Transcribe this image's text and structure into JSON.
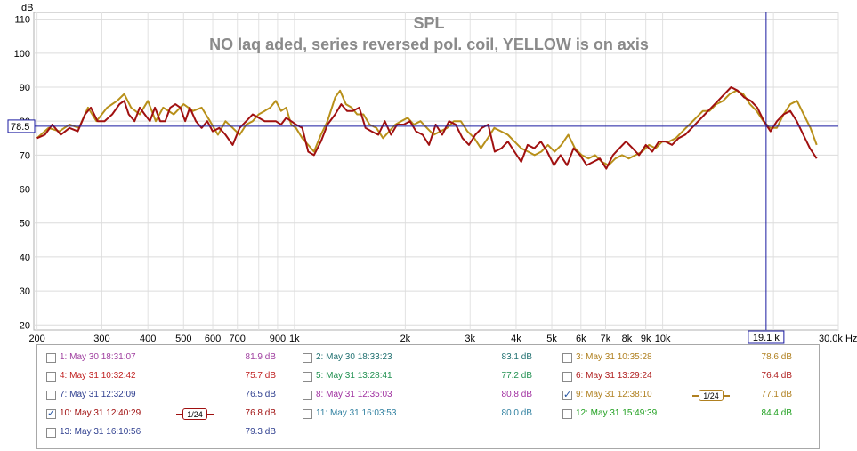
{
  "chart_data": {
    "type": "line",
    "title": "SPL",
    "subtitle": "NO laq aded, series reversed pol. coil, YELLOW is on axis",
    "ylabel": "dB",
    "xlabel": "Hz",
    "x_scale": "log",
    "xlim": [
      196,
      30000
    ],
    "ylim": [
      18.5,
      112
    ],
    "x_ticks": [
      {
        "v": 200,
        "label": "200"
      },
      {
        "v": 300,
        "label": "300"
      },
      {
        "v": 400,
        "label": "400"
      },
      {
        "v": 500,
        "label": "500"
      },
      {
        "v": 600,
        "label": "600"
      },
      {
        "v": 700,
        "label": "700"
      },
      {
        "v": 900,
        "label": "900"
      },
      {
        "v": 1000,
        "label": "1k"
      },
      {
        "v": 2000,
        "label": "2k"
      },
      {
        "v": 3000,
        "label": "3k"
      },
      {
        "v": 4000,
        "label": "4k"
      },
      {
        "v": 5000,
        "label": "5k"
      },
      {
        "v": 6000,
        "label": "6k"
      },
      {
        "v": 7000,
        "label": "7k"
      },
      {
        "v": 8000,
        "label": "8k"
      },
      {
        "v": 9000,
        "label": "9k"
      },
      {
        "v": 10000,
        "label": "10k"
      },
      {
        "v": 30000,
        "label": "30.0k Hz"
      }
    ],
    "y_ticks": [
      20,
      30,
      40,
      50,
      60,
      70,
      80,
      90,
      100,
      110
    ],
    "cursor": {
      "x": 19100,
      "y": 78.5,
      "x_label": "19.1 k",
      "y_label": "78.5"
    },
    "series": [
      {
        "name": "9: May 31 12:38:10",
        "color": "#b8901a",
        "points": [
          [
            200,
            75
          ],
          [
            215,
            78
          ],
          [
            230,
            77
          ],
          [
            245,
            79
          ],
          [
            260,
            78
          ],
          [
            275,
            84
          ],
          [
            290,
            80
          ],
          [
            310,
            84
          ],
          [
            330,
            86
          ],
          [
            345,
            88
          ],
          [
            360,
            84
          ],
          [
            380,
            82
          ],
          [
            400,
            86
          ],
          [
            420,
            80
          ],
          [
            440,
            84
          ],
          [
            470,
            82
          ],
          [
            500,
            85
          ],
          [
            530,
            83
          ],
          [
            560,
            84
          ],
          [
            590,
            80
          ],
          [
            620,
            76
          ],
          [
            650,
            80
          ],
          [
            680,
            78
          ],
          [
            710,
            76
          ],
          [
            740,
            79
          ],
          [
            770,
            80
          ],
          [
            800,
            82
          ],
          [
            830,
            83
          ],
          [
            860,
            84
          ],
          [
            890,
            86
          ],
          [
            920,
            83
          ],
          [
            950,
            84
          ],
          [
            980,
            79
          ],
          [
            1010,
            78
          ],
          [
            1050,
            75
          ],
          [
            1090,
            73
          ],
          [
            1130,
            71
          ],
          [
            1180,
            76
          ],
          [
            1230,
            80
          ],
          [
            1290,
            87
          ],
          [
            1330,
            89
          ],
          [
            1380,
            85
          ],
          [
            1430,
            84
          ],
          [
            1480,
            82
          ],
          [
            1540,
            82
          ],
          [
            1600,
            79
          ],
          [
            1670,
            78
          ],
          [
            1740,
            75
          ],
          [
            1810,
            77
          ],
          [
            1880,
            79
          ],
          [
            1950,
            80
          ],
          [
            2030,
            81
          ],
          [
            2110,
            79
          ],
          [
            2200,
            80
          ],
          [
            2290,
            78
          ],
          [
            2390,
            76
          ],
          [
            2490,
            77
          ],
          [
            2600,
            78
          ],
          [
            2710,
            80
          ],
          [
            2830,
            80
          ],
          [
            2950,
            77
          ],
          [
            3080,
            75
          ],
          [
            3210,
            72
          ],
          [
            3350,
            75
          ],
          [
            3490,
            78
          ],
          [
            3640,
            77
          ],
          [
            3800,
            76
          ],
          [
            3960,
            74
          ],
          [
            4130,
            72
          ],
          [
            4310,
            71
          ],
          [
            4490,
            70
          ],
          [
            4680,
            71
          ],
          [
            4880,
            73
          ],
          [
            5090,
            71
          ],
          [
            5310,
            73
          ],
          [
            5540,
            76
          ],
          [
            5780,
            72
          ],
          [
            6030,
            70
          ],
          [
            6290,
            69
          ],
          [
            6560,
            70
          ],
          [
            6840,
            68
          ],
          [
            7130,
            67
          ],
          [
            7440,
            69
          ],
          [
            7760,
            70
          ],
          [
            8090,
            69
          ],
          [
            8440,
            70
          ],
          [
            8800,
            71
          ],
          [
            9180,
            73
          ],
          [
            9570,
            72
          ],
          [
            9980,
            74
          ],
          [
            10410,
            74
          ],
          [
            10860,
            75
          ],
          [
            11330,
            77
          ],
          [
            11820,
            79
          ],
          [
            12330,
            81
          ],
          [
            12860,
            83
          ],
          [
            13410,
            83
          ],
          [
            13990,
            85
          ],
          [
            14590,
            86
          ],
          [
            15220,
            88
          ],
          [
            15870,
            89
          ],
          [
            16550,
            88
          ],
          [
            17260,
            85
          ],
          [
            18000,
            83
          ],
          [
            18780,
            80
          ],
          [
            19580,
            78
          ],
          [
            20420,
            78
          ],
          [
            21300,
            82
          ],
          [
            22210,
            85
          ],
          [
            23170,
            86
          ],
          [
            24160,
            82
          ],
          [
            25200,
            78
          ],
          [
            26200,
            73
          ]
        ]
      },
      {
        "name": "10: May 31 12:40:29",
        "color": "#a01010",
        "points": [
          [
            200,
            75
          ],
          [
            210,
            76
          ],
          [
            220,
            79
          ],
          [
            232,
            76
          ],
          [
            245,
            78
          ],
          [
            258,
            77
          ],
          [
            270,
            82
          ],
          [
            280,
            84
          ],
          [
            292,
            80
          ],
          [
            305,
            80
          ],
          [
            320,
            82
          ],
          [
            335,
            85
          ],
          [
            345,
            86
          ],
          [
            355,
            82
          ],
          [
            368,
            80
          ],
          [
            380,
            84
          ],
          [
            392,
            82
          ],
          [
            405,
            80
          ],
          [
            418,
            84
          ],
          [
            432,
            80
          ],
          [
            446,
            80
          ],
          [
            460,
            84
          ],
          [
            475,
            85
          ],
          [
            490,
            84
          ],
          [
            505,
            80
          ],
          [
            520,
            84
          ],
          [
            540,
            80
          ],
          [
            560,
            78
          ],
          [
            580,
            80
          ],
          [
            600,
            77
          ],
          [
            625,
            78
          ],
          [
            650,
            76
          ],
          [
            680,
            73
          ],
          [
            710,
            78
          ],
          [
            740,
            80
          ],
          [
            770,
            82
          ],
          [
            800,
            81
          ],
          [
            830,
            80
          ],
          [
            860,
            80
          ],
          [
            890,
            80
          ],
          [
            920,
            79
          ],
          [
            950,
            81
          ],
          [
            980,
            80
          ],
          [
            1010,
            79
          ],
          [
            1050,
            78
          ],
          [
            1090,
            71
          ],
          [
            1130,
            70
          ],
          [
            1180,
            74
          ],
          [
            1230,
            79
          ],
          [
            1290,
            82
          ],
          [
            1340,
            85
          ],
          [
            1390,
            83
          ],
          [
            1440,
            83
          ],
          [
            1500,
            84
          ],
          [
            1560,
            78
          ],
          [
            1620,
            77
          ],
          [
            1690,
            76
          ],
          [
            1760,
            80
          ],
          [
            1830,
            76
          ],
          [
            1900,
            79
          ],
          [
            1980,
            79
          ],
          [
            2060,
            80
          ],
          [
            2140,
            77
          ],
          [
            2230,
            76
          ],
          [
            2320,
            73
          ],
          [
            2420,
            79
          ],
          [
            2520,
            76
          ],
          [
            2630,
            80
          ],
          [
            2740,
            79
          ],
          [
            2860,
            75
          ],
          [
            2980,
            73
          ],
          [
            3100,
            76
          ],
          [
            3230,
            78
          ],
          [
            3360,
            79
          ],
          [
            3500,
            71
          ],
          [
            3650,
            72
          ],
          [
            3800,
            74
          ],
          [
            3960,
            71
          ],
          [
            4130,
            68
          ],
          [
            4300,
            73
          ],
          [
            4480,
            72
          ],
          [
            4670,
            74
          ],
          [
            4860,
            71
          ],
          [
            5070,
            67
          ],
          [
            5280,
            70
          ],
          [
            5500,
            67
          ],
          [
            5730,
            72
          ],
          [
            5970,
            70
          ],
          [
            6220,
            67
          ],
          [
            6480,
            68
          ],
          [
            6750,
            69
          ],
          [
            7030,
            66
          ],
          [
            7330,
            70
          ],
          [
            7630,
            72
          ],
          [
            7950,
            74
          ],
          [
            8290,
            72
          ],
          [
            8630,
            70
          ],
          [
            9000,
            73
          ],
          [
            9370,
            71
          ],
          [
            9770,
            74
          ],
          [
            10180,
            74
          ],
          [
            10600,
            73
          ],
          [
            11050,
            75
          ],
          [
            11510,
            76
          ],
          [
            12000,
            78
          ],
          [
            12500,
            80
          ],
          [
            13020,
            82
          ],
          [
            13570,
            84
          ],
          [
            14140,
            86
          ],
          [
            14730,
            88
          ],
          [
            15340,
            90
          ],
          [
            15990,
            89
          ],
          [
            16660,
            87
          ],
          [
            17360,
            86
          ],
          [
            18080,
            84
          ],
          [
            18840,
            80
          ],
          [
            19630,
            77
          ],
          [
            20450,
            80
          ],
          [
            21310,
            82
          ],
          [
            22210,
            83
          ],
          [
            23140,
            80
          ],
          [
            24110,
            76
          ],
          [
            25120,
            72
          ],
          [
            26200,
            69
          ]
        ]
      }
    ],
    "legend": [
      {
        "label": "1: May 30 18:31:07",
        "value": "81.9 dB",
        "color": "#a040a0",
        "checked": false,
        "smoothing": ""
      },
      {
        "label": "2: May 30 18:33:23",
        "value": "83.1 dB",
        "color": "#207070",
        "checked": false,
        "smoothing": ""
      },
      {
        "label": "3: May 31 10:35:28",
        "value": "78.6 dB",
        "color": "#b08020",
        "checked": false,
        "smoothing": ""
      },
      {
        "label": "4: May 31 10:32:42",
        "value": "75.7 dB",
        "color": "#c02020",
        "checked": false,
        "smoothing": ""
      },
      {
        "label": "5: May 31 13:28:41",
        "value": "77.2 dB",
        "color": "#209050",
        "checked": false,
        "smoothing": ""
      },
      {
        "label": "6: May 31 13:29:24",
        "value": "76.4 dB",
        "color": "#b02020",
        "checked": false,
        "smoothing": ""
      },
      {
        "label": "7: May 31 12:32:09",
        "value": "76.5 dB",
        "color": "#304090",
        "checked": false,
        "smoothing": ""
      },
      {
        "label": "8: May 31 12:35:03",
        "value": "80.8 dB",
        "color": "#a030a0",
        "checked": false,
        "smoothing": ""
      },
      {
        "label": "9: May 31 12:38:10",
        "value": "77.1 dB",
        "color": "#b08020",
        "checked": true,
        "smoothing": "1/24"
      },
      {
        "label": "10: May 31 12:40:29",
        "value": "76.8 dB",
        "color": "#a01010",
        "checked": true,
        "smoothing": "1/24"
      },
      {
        "label": "11: May 31 16:03:53",
        "value": "80.0 dB",
        "color": "#3080a0",
        "checked": false,
        "smoothing": ""
      },
      {
        "label": "12: May 31 15:49:39",
        "value": "84.4 dB",
        "color": "#20a020",
        "checked": false,
        "smoothing": ""
      },
      {
        "label": "13: May 31 16:10:56",
        "value": "79.3 dB",
        "color": "#304090",
        "checked": false,
        "smoothing": ""
      }
    ]
  }
}
